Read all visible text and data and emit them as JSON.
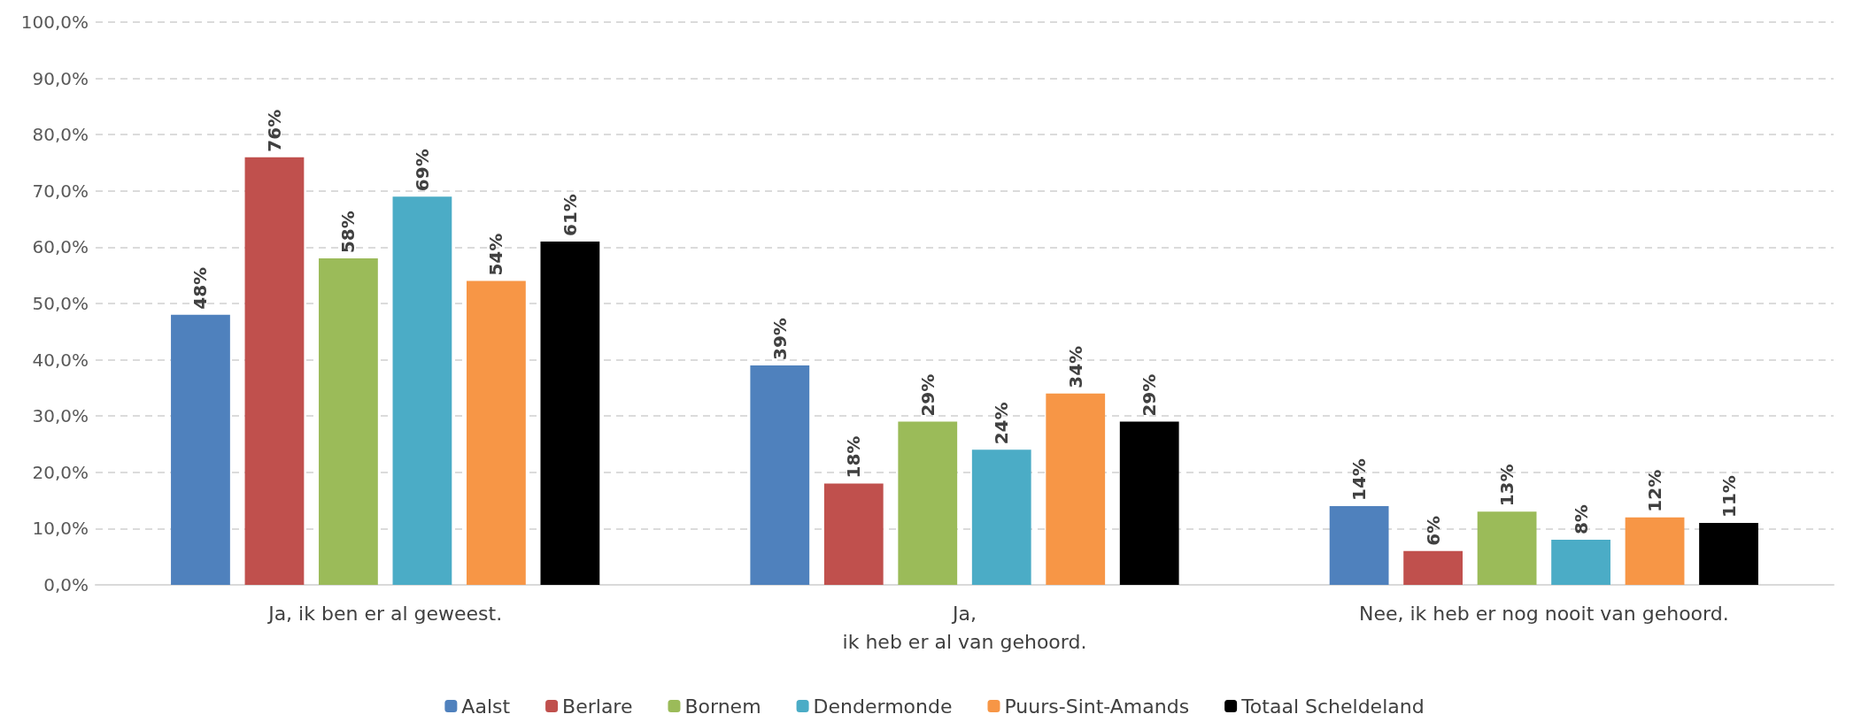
{
  "chart_data": {
    "type": "bar",
    "categories": [
      "Ja, ik ben er al geweest.",
      "Ja,\nik heb er al van gehoord.",
      "Nee, ik heb er nog nooit van gehoord."
    ],
    "series": [
      {
        "name": "Aalst",
        "color": "#4f81bd",
        "values": [
          48,
          39,
          14
        ],
        "value_labels": [
          "48%",
          "39%",
          "14%"
        ]
      },
      {
        "name": "Berlare",
        "color": "#c0504d",
        "values": [
          76,
          18,
          6
        ],
        "value_labels": [
          "76%",
          "18%",
          "6%"
        ]
      },
      {
        "name": "Bornem",
        "color": "#9bbb59",
        "values": [
          58,
          29,
          13
        ],
        "value_labels": [
          "58%",
          "29%",
          "13%"
        ]
      },
      {
        "name": "Dendermonde",
        "color": "#4bacc6",
        "values": [
          69,
          24,
          8
        ],
        "value_labels": [
          "69%",
          "24%",
          "8%"
        ]
      },
      {
        "name": "Puurs-Sint-Amands",
        "color": "#f79646",
        "values": [
          54,
          34,
          12
        ],
        "value_labels": [
          "54%",
          "34%",
          "12%"
        ]
      },
      {
        "name": "Totaal Scheldeland",
        "color": "#000000",
        "values": [
          61,
          29,
          11
        ],
        "value_labels": [
          "61%",
          "29%",
          "11%"
        ]
      }
    ],
    "ylim": [
      0,
      100
    ],
    "yticks": [
      {
        "value": 0,
        "label": "0,0%"
      },
      {
        "value": 10,
        "label": "10,0%"
      },
      {
        "value": 20,
        "label": "20,0%"
      },
      {
        "value": 30,
        "label": "30,0%"
      },
      {
        "value": 40,
        "label": "40,0%"
      },
      {
        "value": 50,
        "label": "50,0%"
      },
      {
        "value": 60,
        "label": "60,0%"
      },
      {
        "value": 70,
        "label": "70,0%"
      },
      {
        "value": 80,
        "label": "80,0%"
      },
      {
        "value": 90,
        "label": "90,0%"
      },
      {
        "value": 100,
        "label": "100,0%"
      }
    ],
    "grid": "y",
    "legend": "bottom"
  }
}
